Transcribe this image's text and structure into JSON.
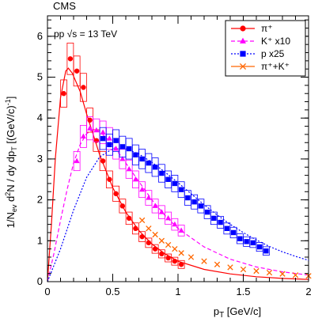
{
  "chart_data": {
    "type": "scatter",
    "experiment": "CMS",
    "annotation": "pp √s = 13 TeV",
    "xlabel": "p_T [GeV/c]",
    "ylabel": "1/N_ev d²N / dy dp_T [(GeV/c)⁻¹]",
    "xlim": [
      0,
      2
    ],
    "ylim": [
      0,
      6.5
    ],
    "x_ticks": [
      0,
      0.5,
      1,
      1.5,
      2
    ],
    "y_ticks": [
      0,
      1,
      2,
      3,
      4,
      5,
      6
    ],
    "legend_position": "top-right",
    "series": [
      {
        "name": "π⁺",
        "color": "#ff0000",
        "marker": "circle",
        "line_style": "solid",
        "points": [
          [
            0.125,
            4.6
          ],
          [
            0.175,
            5.45
          ],
          [
            0.225,
            5.15
          ],
          [
            0.275,
            4.75
          ],
          [
            0.325,
            3.95
          ],
          [
            0.375,
            3.45
          ],
          [
            0.425,
            2.95
          ],
          [
            0.475,
            2.5
          ],
          [
            0.525,
            2.15
          ],
          [
            0.575,
            1.85
          ],
          [
            0.625,
            1.55
          ],
          [
            0.675,
            1.3
          ],
          [
            0.725,
            1.1
          ],
          [
            0.775,
            0.95
          ],
          [
            0.825,
            0.8
          ],
          [
            0.875,
            0.68
          ],
          [
            0.925,
            0.58
          ],
          [
            0.975,
            0.5
          ],
          [
            1.025,
            0.42
          ]
        ],
        "fit": [
          [
            0.0,
            0.0
          ],
          [
            0.03,
            1.4
          ],
          [
            0.06,
            3.0
          ],
          [
            0.1,
            4.5
          ],
          [
            0.14,
            5.15
          ],
          [
            0.16,
            5.22
          ],
          [
            0.19,
            5.1
          ],
          [
            0.25,
            4.65
          ],
          [
            0.3,
            4.1
          ],
          [
            0.4,
            3.1
          ],
          [
            0.5,
            2.3
          ],
          [
            0.6,
            1.7
          ],
          [
            0.7,
            1.25
          ],
          [
            0.8,
            0.92
          ],
          [
            0.9,
            0.68
          ],
          [
            1.0,
            0.5
          ],
          [
            1.2,
            0.3
          ],
          [
            1.4,
            0.19
          ],
          [
            1.6,
            0.12
          ],
          [
            1.8,
            0.08
          ],
          [
            2.0,
            0.055
          ]
        ]
      },
      {
        "name": "K⁺ x10",
        "color": "#ff00ff",
        "marker": "triangle",
        "line_style": "dashed",
        "points": [
          [
            0.225,
            2.95
          ],
          [
            0.275,
            3.55
          ],
          [
            0.325,
            3.75
          ],
          [
            0.375,
            3.7
          ],
          [
            0.425,
            3.65
          ],
          [
            0.475,
            3.5
          ],
          [
            0.525,
            3.25
          ],
          [
            0.575,
            3.0
          ],
          [
            0.625,
            2.75
          ],
          [
            0.675,
            2.5
          ],
          [
            0.725,
            2.25
          ],
          [
            0.775,
            2.05
          ],
          [
            0.825,
            1.85
          ],
          [
            0.875,
            1.7
          ],
          [
            0.925,
            1.55
          ],
          [
            0.975,
            1.4
          ],
          [
            1.025,
            1.25
          ]
        ],
        "fit": [
          [
            0.0,
            0.0
          ],
          [
            0.05,
            0.7
          ],
          [
            0.1,
            1.5
          ],
          [
            0.15,
            2.25
          ],
          [
            0.2,
            2.9
          ],
          [
            0.25,
            3.35
          ],
          [
            0.3,
            3.62
          ],
          [
            0.35,
            3.72
          ],
          [
            0.4,
            3.68
          ],
          [
            0.5,
            3.35
          ],
          [
            0.6,
            2.9
          ],
          [
            0.7,
            2.45
          ],
          [
            0.8,
            2.0
          ],
          [
            0.9,
            1.62
          ],
          [
            1.0,
            1.3
          ],
          [
            1.2,
            0.85
          ],
          [
            1.4,
            0.55
          ],
          [
            1.6,
            0.36
          ],
          [
            1.8,
            0.24
          ],
          [
            2.0,
            0.16
          ]
        ]
      },
      {
        "name": "p x25",
        "color": "#0000ff",
        "marker": "square",
        "line_style": "dotted",
        "points": [
          [
            0.425,
            3.5
          ],
          [
            0.475,
            3.35
          ],
          [
            0.525,
            3.45
          ],
          [
            0.575,
            3.3
          ],
          [
            0.625,
            3.25
          ],
          [
            0.675,
            3.1
          ],
          [
            0.725,
            3.0
          ],
          [
            0.775,
            2.9
          ],
          [
            0.825,
            2.8
          ],
          [
            0.875,
            2.65
          ],
          [
            0.925,
            2.5
          ],
          [
            0.975,
            2.4
          ],
          [
            1.025,
            2.25
          ],
          [
            1.075,
            2.05
          ],
          [
            1.125,
            1.95
          ],
          [
            1.175,
            1.85
          ],
          [
            1.225,
            1.7
          ],
          [
            1.275,
            1.55
          ],
          [
            1.325,
            1.45
          ],
          [
            1.375,
            1.3
          ],
          [
            1.425,
            1.2
          ],
          [
            1.475,
            1.05
          ],
          [
            1.525,
            0.98
          ],
          [
            1.575,
            0.95
          ],
          [
            1.625,
            0.85
          ],
          [
            1.675,
            0.75
          ]
        ],
        "fit": [
          [
            0.0,
            0.0
          ],
          [
            0.1,
            0.8
          ],
          [
            0.2,
            1.75
          ],
          [
            0.3,
            2.55
          ],
          [
            0.4,
            3.05
          ],
          [
            0.5,
            3.25
          ],
          [
            0.6,
            3.25
          ],
          [
            0.7,
            3.12
          ],
          [
            0.8,
            2.92
          ],
          [
            0.9,
            2.68
          ],
          [
            1.0,
            2.42
          ],
          [
            1.1,
            2.15
          ],
          [
            1.2,
            1.88
          ],
          [
            1.3,
            1.63
          ],
          [
            1.4,
            1.4
          ],
          [
            1.5,
            1.2
          ],
          [
            1.6,
            1.02
          ],
          [
            1.7,
            0.86
          ],
          [
            1.8,
            0.73
          ],
          [
            1.9,
            0.62
          ],
          [
            2.0,
            0.52
          ]
        ]
      },
      {
        "name": "π⁺+K⁺",
        "color": "#ff6600",
        "marker": "cross",
        "line_style": "solid",
        "points": [
          [
            0.725,
            1.5
          ],
          [
            0.775,
            1.3
          ],
          [
            0.825,
            1.15
          ],
          [
            0.875,
            1.0
          ],
          [
            0.925,
            0.9
          ],
          [
            0.975,
            0.8
          ],
          [
            1.025,
            0.7
          ],
          [
            1.1,
            0.6
          ],
          [
            1.2,
            0.5
          ],
          [
            1.3,
            0.42
          ],
          [
            1.4,
            0.35
          ],
          [
            1.5,
            0.3
          ],
          [
            1.6,
            0.26
          ],
          [
            1.7,
            0.22
          ],
          [
            1.8,
            0.19
          ],
          [
            1.9,
            0.16
          ],
          [
            2.0,
            0.14
          ]
        ],
        "fit": []
      }
    ]
  }
}
